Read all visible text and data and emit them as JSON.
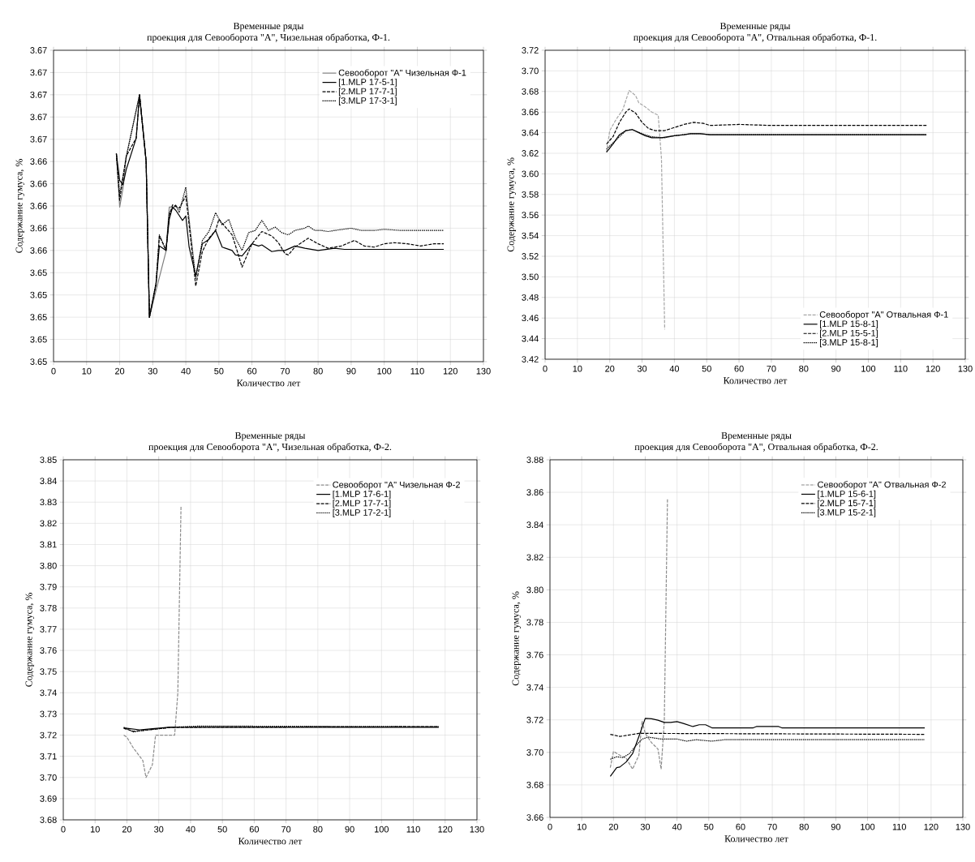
{
  "chart_data": [
    {
      "type": "line",
      "title": "Временные ряды",
      "subtitle": "проекция для Севооборота \"А\", Чизельная обработка, Ф-1.",
      "xlabel": "Количество лет",
      "ylabel": "Содержание гумуса, %",
      "xlim": [
        0,
        130
      ],
      "ylim": [
        3.646,
        3.674
      ],
      "xticks": [
        0,
        10,
        20,
        30,
        40,
        50,
        60,
        70,
        80,
        90,
        100,
        110,
        120,
        130
      ],
      "yticks": [
        {
          "value": 3.646,
          "label": "3.65"
        },
        {
          "value": 3.648,
          "label": "3.65"
        },
        {
          "value": 3.65,
          "label": "3.65"
        },
        {
          "value": 3.652,
          "label": "3.65"
        },
        {
          "value": 3.654,
          "label": "3.65"
        },
        {
          "value": 3.656,
          "label": "3.66"
        },
        {
          "value": 3.658,
          "label": "3.66"
        },
        {
          "value": 3.66,
          "label": "3.66"
        },
        {
          "value": 3.662,
          "label": "3.66"
        },
        {
          "value": 3.664,
          "label": "3.66"
        },
        {
          "value": 3.666,
          "label": "3.67"
        },
        {
          "value": 3.668,
          "label": "3.67"
        },
        {
          "value": 3.67,
          "label": "3.67"
        },
        {
          "value": 3.672,
          "label": "3.67"
        },
        {
          "value": 3.674,
          "label": "3.67"
        }
      ],
      "grid": true,
      "legend": "top right",
      "series": [
        {
          "name": "Севооборот \"А\" Чизельная Ф-1",
          "color": "#7f7f7f",
          "line_style": "solid",
          "x": [
            19,
            20,
            21,
            22,
            26,
            28,
            29,
            31,
            34,
            35,
            36
          ],
          "values": [
            3.6647,
            3.6599,
            3.6616,
            3.6645,
            3.67,
            3.664,
            3.65,
            3.6524,
            3.6559,
            3.6599,
            3.6599
          ]
        },
        {
          "name": "[1.MLP 17-5-1]",
          "color": "#000000",
          "line_style": "solid",
          "x": [
            19,
            20,
            21,
            22,
            25,
            26,
            28,
            29,
            31,
            32,
            34,
            35,
            36,
            37,
            39,
            40,
            41,
            43,
            45,
            47,
            49,
            51,
            52,
            54,
            55,
            57,
            60,
            62,
            63,
            66,
            68,
            70,
            73,
            76,
            80,
            85,
            88,
            118
          ],
          "values": [
            3.6647,
            3.6623,
            3.6619,
            3.6633,
            3.6661,
            3.67,
            3.664,
            3.65,
            3.653,
            3.6564,
            3.656,
            3.6588,
            3.6599,
            3.6596,
            3.6587,
            3.6591,
            3.6563,
            3.6537,
            3.6566,
            3.657,
            3.6578,
            3.6563,
            3.6562,
            3.656,
            3.6556,
            3.6555,
            3.6566,
            3.6564,
            3.6565,
            3.6559,
            3.656,
            3.656,
            3.6564,
            3.6562,
            3.656,
            3.6562,
            3.6561,
            3.6561
          ]
        },
        {
          "name": "[2.MLP 17-7-1]",
          "color": "#000000",
          "line_style": "dashed",
          "x": [
            19,
            20,
            22,
            25,
            26,
            28,
            29,
            31,
            32,
            33,
            34,
            35,
            36,
            38,
            40,
            41,
            43,
            45,
            47,
            49,
            50,
            52,
            54,
            56,
            57,
            60,
            63,
            66,
            68,
            70,
            71,
            73,
            77,
            80,
            83,
            87,
            91,
            94,
            97,
            100,
            103,
            107,
            111,
            115,
            118
          ],
          "values": [
            3.6647,
            3.6605,
            3.6645,
            3.6661,
            3.67,
            3.664,
            3.65,
            3.653,
            3.6573,
            3.6567,
            3.656,
            3.6591,
            3.6601,
            3.6598,
            3.6609,
            3.6583,
            3.6528,
            3.6559,
            3.6571,
            3.6578,
            3.6588,
            3.6581,
            3.6574,
            3.6555,
            3.6545,
            3.6566,
            3.6577,
            3.6573,
            3.6567,
            3.6557,
            3.6556,
            3.6563,
            3.6571,
            3.6566,
            3.6562,
            3.6564,
            3.6569,
            3.6564,
            3.6563,
            3.6566,
            3.6567,
            3.6566,
            3.6564,
            3.6566,
            3.6566
          ]
        },
        {
          "name": "[3.MLP 17-3-1]",
          "color": "#000000",
          "line_style": "dotted",
          "x": [
            19,
            20,
            22,
            26,
            28,
            29,
            31,
            32,
            34,
            35,
            37,
            38,
            40,
            41,
            43,
            45,
            47,
            49,
            51,
            53,
            55,
            57,
            59,
            61,
            63,
            65,
            67,
            69,
            71,
            73,
            76,
            77,
            79,
            81,
            83,
            85,
            90,
            93,
            97,
            100,
            105,
            109,
            112,
            118
          ],
          "values": [
            3.6647,
            3.661,
            3.6644,
            3.67,
            3.664,
            3.65,
            3.6531,
            3.6574,
            3.656,
            3.6594,
            3.6601,
            3.6594,
            3.6617,
            3.6588,
            3.6535,
            3.6569,
            3.6577,
            3.6594,
            3.6583,
            3.6588,
            3.6571,
            3.656,
            3.6576,
            3.6578,
            3.6587,
            3.6578,
            3.6581,
            3.6576,
            3.6574,
            3.6578,
            3.658,
            3.6582,
            3.6578,
            3.6578,
            3.6577,
            3.6578,
            3.658,
            3.6578,
            3.6578,
            3.6579,
            3.6578,
            3.6578,
            3.6578,
            3.6578
          ]
        }
      ]
    },
    {
      "type": "line",
      "title": "Временные ряды",
      "subtitle": "проекция для Севооборота \"А\", Отвальная обработка, Ф-1.",
      "xlabel": "Количество лет",
      "ylabel": "Содержание гумуса, %",
      "xlim": [
        0,
        130
      ],
      "ylim": [
        3.42,
        3.72
      ],
      "xticks": [
        0,
        10,
        20,
        30,
        40,
        50,
        60,
        70,
        80,
        90,
        100,
        110,
        120,
        130
      ],
      "yticks": [
        {
          "value": 3.42,
          "label": "3.42"
        },
        {
          "value": 3.44,
          "label": "3.44"
        },
        {
          "value": 3.46,
          "label": "3.46"
        },
        {
          "value": 3.48,
          "label": "3.48"
        },
        {
          "value": 3.5,
          "label": "3.50"
        },
        {
          "value": 3.52,
          "label": "3.52"
        },
        {
          "value": 3.54,
          "label": "3.54"
        },
        {
          "value": 3.56,
          "label": "3.56"
        },
        {
          "value": 3.58,
          "label": "3.58"
        },
        {
          "value": 3.6,
          "label": "3.60"
        },
        {
          "value": 3.62,
          "label": "3.62"
        },
        {
          "value": 3.64,
          "label": "3.64"
        },
        {
          "value": 3.66,
          "label": "3.66"
        },
        {
          "value": 3.68,
          "label": "3.68"
        },
        {
          "value": 3.7,
          "label": "3.70"
        },
        {
          "value": 3.72,
          "label": "3.72"
        }
      ],
      "grid": true,
      "legend": "bottom right",
      "series": [
        {
          "name": "Севооборот \"А\" Отвальная Ф-1",
          "color": "#a6a6a6",
          "line_style": "dashed",
          "x": [
            19,
            20,
            22,
            24,
            26,
            28,
            29,
            31,
            33,
            35,
            36,
            37
          ],
          "values": [
            3.621,
            3.642,
            3.653,
            3.662,
            3.681,
            3.676,
            3.669,
            3.665,
            3.66,
            3.657,
            3.615,
            3.449
          ]
        },
        {
          "name": "[1.MLP 15-8-1]",
          "color": "#000000",
          "line_style": "solid",
          "x": [
            19,
            21,
            23,
            25,
            27,
            29,
            31,
            33,
            36,
            38,
            40,
            43,
            45,
            48,
            51,
            118
          ],
          "values": [
            3.621,
            3.629,
            3.638,
            3.642,
            3.643,
            3.64,
            3.637,
            3.635,
            3.635,
            3.636,
            3.637,
            3.638,
            3.639,
            3.639,
            3.638,
            3.638
          ]
        },
        {
          "name": "[2.MLP 15-5-1]",
          "color": "#000000",
          "line_style": "dashed",
          "x": [
            19,
            21,
            23,
            25,
            26,
            28,
            30,
            32,
            34,
            37,
            40,
            43,
            46,
            49,
            51,
            60,
            70,
            118
          ],
          "values": [
            3.629,
            3.636,
            3.65,
            3.66,
            3.663,
            3.659,
            3.65,
            3.644,
            3.642,
            3.642,
            3.645,
            3.648,
            3.65,
            3.649,
            3.647,
            3.648,
            3.647,
            3.647
          ]
        },
        {
          "name": "[3.MLP 15-8-1]",
          "color": "#000000",
          "line_style": "dotted",
          "x": [
            19,
            22,
            25,
            27,
            30,
            33,
            37,
            40,
            45,
            48,
            51,
            118
          ],
          "values": [
            3.624,
            3.633,
            3.642,
            3.643,
            3.639,
            3.636,
            3.635,
            3.637,
            3.639,
            3.639,
            3.638,
            3.638
          ]
        }
      ]
    },
    {
      "type": "line",
      "title": "Временные ряды",
      "subtitle": "проекция для Севооборота \"А\", Чизельная обработка, Ф-2.",
      "xlabel": "Количество лет",
      "ylabel": "Содержание гумуса, %",
      "xlim": [
        0,
        130
      ],
      "ylim": [
        3.68,
        3.85
      ],
      "xticks": [
        0,
        10,
        20,
        30,
        40,
        50,
        60,
        70,
        80,
        90,
        100,
        110,
        120,
        130
      ],
      "yticks": [
        {
          "value": 3.68,
          "label": "3.68"
        },
        {
          "value": 3.69,
          "label": "3.69"
        },
        {
          "value": 3.7,
          "label": "3.70"
        },
        {
          "value": 3.71,
          "label": "3.71"
        },
        {
          "value": 3.72,
          "label": "3.72"
        },
        {
          "value": 3.73,
          "label": "3.73"
        },
        {
          "value": 3.74,
          "label": "3.74"
        },
        {
          "value": 3.75,
          "label": "3.75"
        },
        {
          "value": 3.76,
          "label": "3.76"
        },
        {
          "value": 3.77,
          "label": "3.77"
        },
        {
          "value": 3.78,
          "label": "3.78"
        },
        {
          "value": 3.79,
          "label": "3.79"
        },
        {
          "value": 3.8,
          "label": "3.80"
        },
        {
          "value": 3.81,
          "label": "3.81"
        },
        {
          "value": 3.82,
          "label": "3.82"
        },
        {
          "value": 3.83,
          "label": "3.83"
        },
        {
          "value": 3.84,
          "label": "3.84"
        },
        {
          "value": 3.85,
          "label": "3.85"
        }
      ],
      "grid": true,
      "legend": "top right",
      "series": [
        {
          "name": "Севооборот \"А\" Чизельная Ф-2",
          "color": "#8c8c8c",
          "line_style": "dashed",
          "x": [
            19,
            20,
            22,
            24,
            25,
            26,
            28,
            29,
            33,
            35,
            36,
            37
          ],
          "values": [
            3.72,
            3.719,
            3.714,
            3.71,
            3.708,
            3.7,
            3.706,
            3.72,
            3.72,
            3.72,
            3.74,
            3.828
          ]
        },
        {
          "name": "[1.MLP 17-6-1]",
          "color": "#000000",
          "line_style": "solid",
          "x": [
            19,
            21,
            24,
            28,
            31,
            33,
            118
          ],
          "values": [
            3.7234,
            3.723,
            3.7225,
            3.723,
            3.7234,
            3.7237,
            3.7237
          ]
        },
        {
          "name": "[2.MLP 17-7-1]",
          "color": "#000000",
          "line_style": "dashed",
          "x": [
            19,
            22,
            25,
            30,
            34,
            118
          ],
          "values": [
            3.7232,
            3.7218,
            3.7222,
            3.723,
            3.7237,
            3.724
          ]
        },
        {
          "name": "[3.MLP 17-2-1]",
          "color": "#000000",
          "line_style": "dotted",
          "x": [
            19,
            22,
            25,
            30,
            34,
            43,
            118
          ],
          "values": [
            3.7237,
            3.7215,
            3.7222,
            3.723,
            3.7237,
            3.7243,
            3.724
          ]
        }
      ]
    },
    {
      "type": "line",
      "title": "Временные ряды",
      "subtitle": "проекция для Севооборота \"А\", Отвальная обработка, Ф-2.",
      "xlabel": "Количество лет",
      "ylabel": "Содержание гумуса, %",
      "xlim": [
        0,
        130
      ],
      "ylim": [
        3.66,
        3.88
      ],
      "xticks": [
        0,
        10,
        20,
        30,
        40,
        50,
        60,
        70,
        80,
        90,
        100,
        110,
        120,
        130
      ],
      "yticks": [
        {
          "value": 3.66,
          "label": "3.66"
        },
        {
          "value": 3.68,
          "label": "3.68"
        },
        {
          "value": 3.7,
          "label": "3.70"
        },
        {
          "value": 3.72,
          "label": "3.72"
        },
        {
          "value": 3.74,
          "label": "3.74"
        },
        {
          "value": 3.76,
          "label": "3.76"
        },
        {
          "value": 3.78,
          "label": "3.78"
        },
        {
          "value": 3.8,
          "label": "3.80"
        },
        {
          "value": 3.82,
          "label": "3.82"
        },
        {
          "value": 3.84,
          "label": "3.84"
        },
        {
          "value": 3.86,
          "label": "3.86"
        },
        {
          "value": 3.88,
          "label": "3.88"
        }
      ],
      "grid": true,
      "legend": "top right",
      "series": [
        {
          "name": "Севооборот \"А\" Отвальная Ф-2",
          "color": "#8c8c8c",
          "line_style": "dashed",
          "x": [
            19,
            20,
            22,
            24,
            26,
            28,
            29,
            30,
            32,
            34,
            35,
            36,
            37
          ],
          "values": [
            3.6906,
            3.7006,
            3.6983,
            3.6964,
            3.6897,
            3.6983,
            3.7193,
            3.7117,
            3.7059,
            3.7021,
            3.6897,
            3.7193,
            3.8562
          ]
        },
        {
          "name": "[1.MLP 15-6-1]",
          "color": "#000000",
          "line_style": "solid",
          "x": [
            19,
            21,
            22,
            24,
            26,
            28,
            30,
            32,
            34,
            36,
            38,
            40,
            42,
            45,
            47,
            49,
            51,
            64,
            65,
            72,
            73,
            118
          ],
          "values": [
            3.6853,
            3.6906,
            3.691,
            3.6941,
            3.6992,
            3.7098,
            3.7209,
            3.7207,
            3.7198,
            3.7184,
            3.7184,
            3.7189,
            3.7178,
            3.7159,
            3.717,
            3.717,
            3.7151,
            3.7151,
            3.7159,
            3.7159,
            3.7151,
            3.7151
          ]
        },
        {
          "name": "[2.MLP 15-7-1]",
          "color": "#000000",
          "line_style": "dashed",
          "x": [
            19,
            22,
            25,
            28,
            118
          ],
          "values": [
            3.7111,
            3.7098,
            3.7107,
            3.7117,
            3.7111
          ]
        },
        {
          "name": "[3.MLP 15-2-1]",
          "color": "#000000",
          "line_style": "dotted",
          "x": [
            19,
            21,
            23,
            25,
            27,
            29,
            31,
            35,
            40,
            43,
            46,
            51,
            55,
            118
          ],
          "values": [
            3.6958,
            3.6973,
            3.6968,
            3.6992,
            3.704,
            3.7082,
            3.7094,
            3.7082,
            3.7082,
            3.7069,
            3.7078,
            3.7069,
            3.7078,
            3.7078
          ]
        }
      ]
    }
  ]
}
